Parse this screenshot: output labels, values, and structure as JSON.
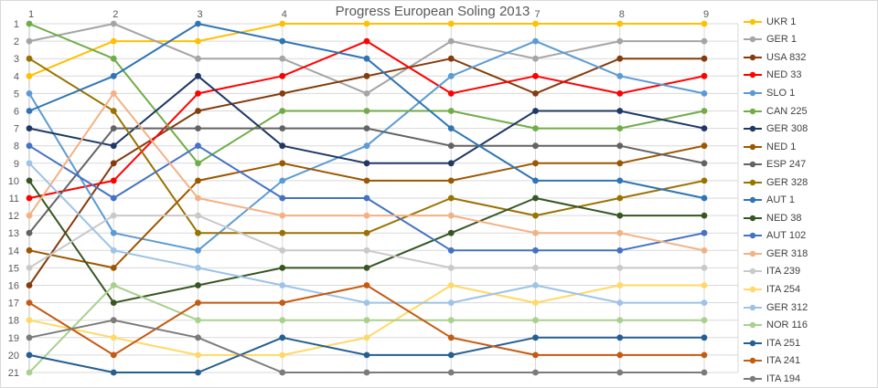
{
  "chart_data": {
    "type": "line",
    "title": "Progress European Soling 2013",
    "x_ticks": [
      1,
      2,
      3,
      4,
      5,
      6,
      7,
      8,
      9
    ],
    "x_axis_position": "top",
    "y_ticks": [
      1,
      2,
      3,
      4,
      5,
      6,
      7,
      8,
      9,
      10,
      11,
      12,
      13,
      14,
      15,
      16,
      17,
      18,
      19,
      20,
      21
    ],
    "y_inverted": true,
    "ylim": [
      1,
      21
    ],
    "xlim": [
      1,
      9
    ],
    "grid": true,
    "legend_position": "right",
    "grid_color": "#d9d9d9",
    "axis_line_color": "#bfbfbf",
    "tick_text_color": "#595959",
    "legend_text_color": "#404040",
    "title_color": "#595959",
    "series": [
      {
        "name": "UKR 1",
        "color": "#FFC000",
        "positions": [
          4,
          2,
          2,
          1,
          1,
          1,
          1,
          1,
          1
        ]
      },
      {
        "name": "GER 1",
        "color": "#A5A5A5",
        "positions": [
          2,
          1,
          3,
          3,
          5,
          2,
          3,
          2,
          2
        ]
      },
      {
        "name": "USA 832",
        "color": "#843C0C",
        "positions": [
          16,
          9,
          6,
          5,
          4,
          3,
          5,
          3,
          3
        ]
      },
      {
        "name": "NED 33",
        "color": "#FF0000",
        "positions": [
          11,
          10,
          5,
          4,
          2,
          5,
          4,
          5,
          4
        ]
      },
      {
        "name": "SLO 1",
        "color": "#5B9BD5",
        "positions": [
          5,
          13,
          14,
          10,
          8,
          4,
          2,
          4,
          5
        ]
      },
      {
        "name": "CAN 225",
        "color": "#70AD47",
        "positions": [
          1,
          3,
          9,
          6,
          6,
          6,
          7,
          7,
          6
        ]
      },
      {
        "name": "GER 308",
        "color": "#1F3864",
        "positions": [
          7,
          8,
          4,
          8,
          9,
          9,
          6,
          6,
          7
        ]
      },
      {
        "name": "NED 1",
        "color": "#9C5700",
        "positions": [
          14,
          15,
          10,
          9,
          10,
          10,
          9,
          9,
          8
        ]
      },
      {
        "name": "ESP 247",
        "color": "#636363",
        "positions": [
          13,
          7,
          7,
          7,
          7,
          8,
          8,
          8,
          9
        ]
      },
      {
        "name": "GER 328",
        "color": "#997300",
        "positions": [
          3,
          6,
          13,
          13,
          13,
          11,
          12,
          11,
          10
        ]
      },
      {
        "name": "AUT 1",
        "color": "#2E75B6",
        "positions": [
          6,
          4,
          1,
          2,
          3,
          7,
          10,
          10,
          11
        ]
      },
      {
        "name": "NED 38",
        "color": "#375623",
        "positions": [
          10,
          17,
          16,
          15,
          15,
          13,
          11,
          12,
          12
        ]
      },
      {
        "name": "AUT 102",
        "color": "#4472C4",
        "positions": [
          8,
          11,
          8,
          11,
          11,
          14,
          14,
          14,
          13
        ]
      },
      {
        "name": "GER 318",
        "color": "#F4B183",
        "positions": [
          12,
          5,
          11,
          12,
          12,
          12,
          13,
          13,
          14
        ]
      },
      {
        "name": "ITA 239",
        "color": "#C9C9C9",
        "positions": [
          15,
          12,
          12,
          14,
          14,
          15,
          15,
          15,
          15
        ]
      },
      {
        "name": "ITA 254",
        "color": "#FFD966",
        "positions": [
          18,
          19,
          20,
          20,
          19,
          16,
          17,
          16,
          16
        ]
      },
      {
        "name": "GER 312",
        "color": "#9DC3E6",
        "positions": [
          9,
          14,
          15,
          16,
          17,
          17,
          16,
          17,
          17
        ]
      },
      {
        "name": "NOR 116",
        "color": "#A9D18E",
        "positions": [
          21,
          16,
          18,
          18,
          18,
          18,
          18,
          18,
          18
        ]
      },
      {
        "name": "ITA 251",
        "color": "#255E91",
        "positions": [
          20,
          21,
          21,
          19,
          20,
          20,
          19,
          19,
          19
        ]
      },
      {
        "name": "ITA 241",
        "color": "#C55A11",
        "positions": [
          17,
          20,
          17,
          17,
          16,
          19,
          20,
          20,
          20
        ]
      },
      {
        "name": "ITA 194",
        "color": "#7B7B7B",
        "positions": [
          19,
          18,
          19,
          21,
          21,
          21,
          21,
          21,
          21
        ]
      }
    ]
  }
}
